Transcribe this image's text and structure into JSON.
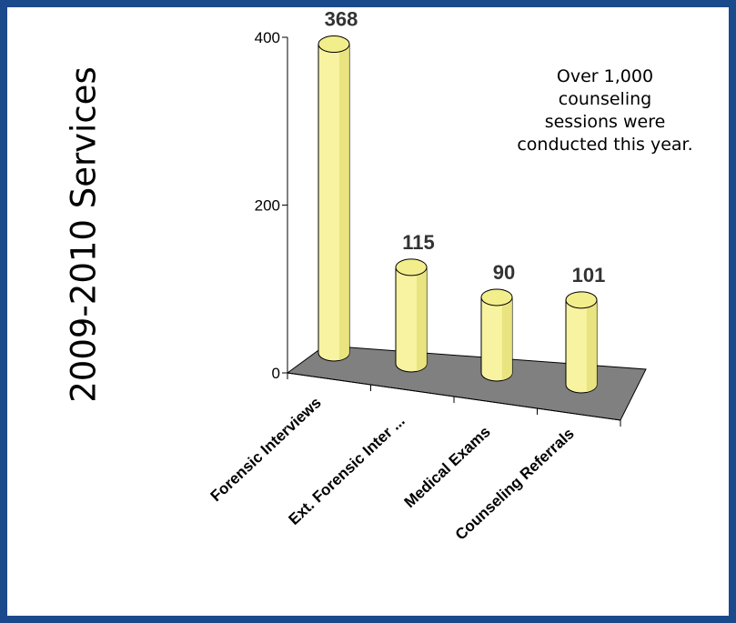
{
  "chart_data": {
    "type": "bar",
    "title": "2009-2010 Services",
    "categories": [
      "Forensic Interviews",
      "Ext. Forensic Inter ...",
      "Medical Exams",
      "Counseling Referrals"
    ],
    "values": [
      368,
      115,
      90,
      101
    ],
    "value_labels": [
      "368",
      "115",
      "90",
      "101"
    ],
    "yticks": [
      0,
      200,
      400
    ],
    "ylim": [
      0,
      400
    ],
    "grid": false,
    "style": "3d cylinder",
    "colors": {
      "bar": "#f7f3a0",
      "bar_shade": "#e6e07a",
      "floor": "#808080",
      "frame": "#1a4a8c"
    }
  },
  "annotation": {
    "lines": [
      "Over 1,000",
      "counseling",
      "sessions were",
      "conducted this year."
    ]
  }
}
